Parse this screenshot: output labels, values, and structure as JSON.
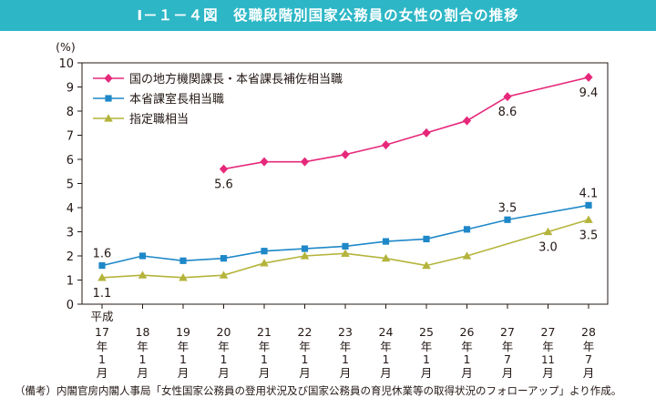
{
  "title": "Ⅰ－１－４図　役職段階別国家公務員の女性の割合の推移",
  "note": "（備考）内閣官房内閣人事局「女性国家公務員の登用状況及び国家公務員の育児休業等の取得状況のフォローアップ」より作成。",
  "colors": {
    "title_bar": "#2db7c6",
    "series1": "#e6287a",
    "series2": "#1e88c8",
    "series3": "#b4b43c",
    "axis": "#231815"
  },
  "chart_data": {
    "type": "line",
    "ylabel": "(%)",
    "ylim": [
      0,
      10
    ],
    "yticks": [
      "0",
      "1",
      "2",
      "3",
      "4",
      "5",
      "6",
      "7",
      "8",
      "9",
      "10"
    ],
    "x_prefix": "平成",
    "categories": [
      "17年1月",
      "18年1月",
      "19年1月",
      "20年1月",
      "21年1月",
      "22年1月",
      "23年1月",
      "24年1月",
      "25年1月",
      "26年1月",
      "27年7月",
      "27年11月",
      "28年7月"
    ],
    "category_glyphs": [
      [
        "17",
        "年",
        "1",
        "月"
      ],
      [
        "18",
        "年",
        "1",
        "月"
      ],
      [
        "19",
        "年",
        "1",
        "月"
      ],
      [
        "20",
        "年",
        "1",
        "月"
      ],
      [
        "21",
        "年",
        "1",
        "月"
      ],
      [
        "22",
        "年",
        "1",
        "月"
      ],
      [
        "23",
        "年",
        "1",
        "月"
      ],
      [
        "24",
        "年",
        "1",
        "月"
      ],
      [
        "25",
        "年",
        "1",
        "月"
      ],
      [
        "26",
        "年",
        "1",
        "月"
      ],
      [
        "27",
        "年",
        "7",
        "月"
      ],
      [
        "27",
        "年",
        "11",
        "月"
      ],
      [
        "28",
        "年",
        "7",
        "月"
      ]
    ],
    "series": [
      {
        "name": "国の地方機関課長・本省課長補佐相当職",
        "marker": "diamond",
        "values": [
          null,
          null,
          null,
          5.6,
          5.9,
          5.9,
          6.2,
          6.6,
          7.1,
          7.6,
          8.6,
          null,
          9.4
        ]
      },
      {
        "name": "本省課室長相当職",
        "marker": "square",
        "values": [
          1.6,
          2.0,
          1.8,
          1.9,
          2.2,
          2.3,
          2.4,
          2.6,
          2.7,
          3.1,
          3.5,
          null,
          4.1
        ]
      },
      {
        "name": "指定職相当",
        "marker": "triangle",
        "values": [
          1.1,
          1.2,
          1.1,
          1.2,
          1.7,
          2.0,
          2.1,
          1.9,
          1.6,
          2.0,
          null,
          3.0,
          3.5
        ]
      }
    ],
    "annotations": [
      {
        "series": 0,
        "index": 3,
        "text": "5.6",
        "pos": "below"
      },
      {
        "series": 0,
        "index": 10,
        "text": "8.6",
        "pos": "below"
      },
      {
        "series": 0,
        "index": 12,
        "text": "9.4",
        "pos": "below"
      },
      {
        "series": 1,
        "index": 0,
        "text": "1.6",
        "pos": "above"
      },
      {
        "series": 1,
        "index": 10,
        "text": "3.5",
        "pos": "above"
      },
      {
        "series": 1,
        "index": 12,
        "text": "4.1",
        "pos": "above"
      },
      {
        "series": 2,
        "index": 0,
        "text": "1.1",
        "pos": "below"
      },
      {
        "series": 2,
        "index": 11,
        "text": "3.0",
        "pos": "below"
      },
      {
        "series": 2,
        "index": 12,
        "text": "3.5",
        "pos": "below"
      }
    ],
    "legend_position": "top-left"
  }
}
